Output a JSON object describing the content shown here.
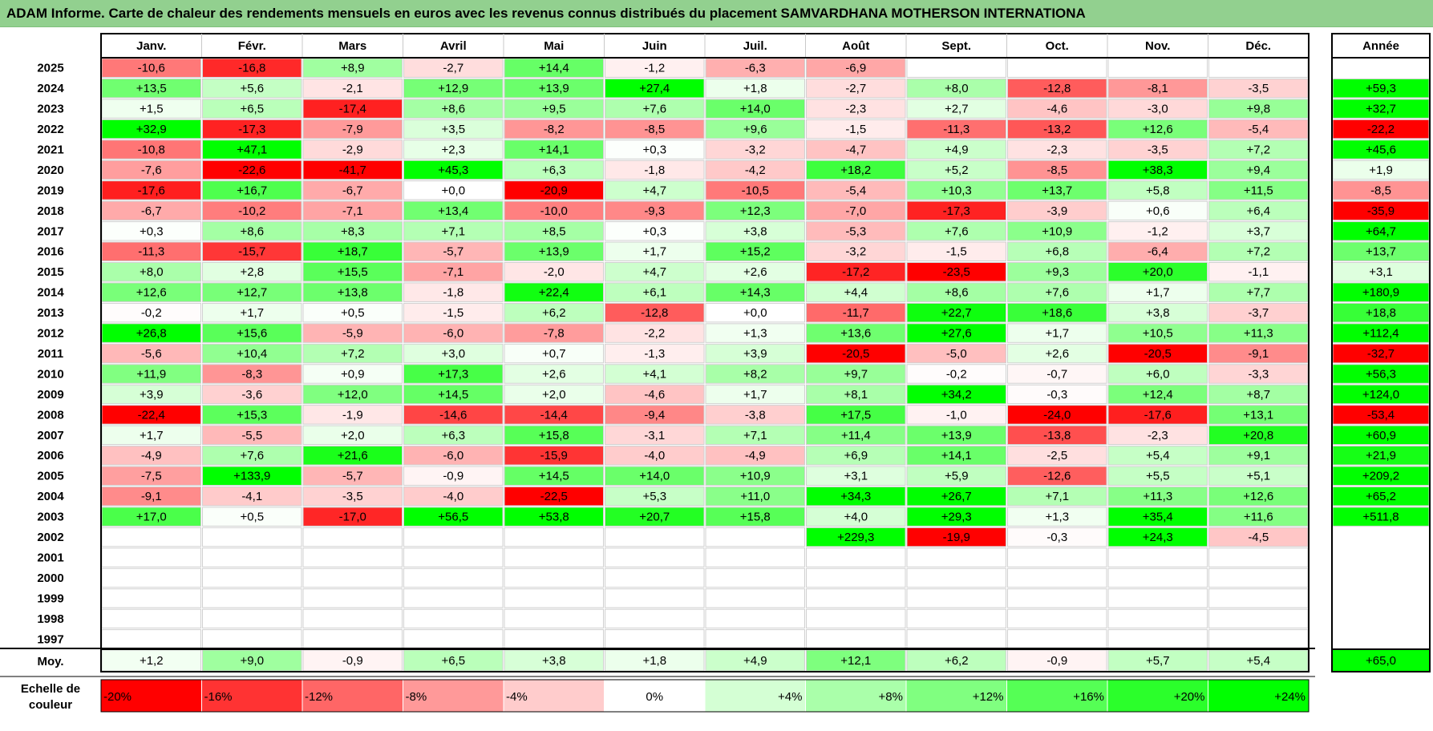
{
  "title": "ADAM Informe. Carte de chaleur des rendements mensuels en euros avec les revenus connus distribués du placement SAMVARDHANA MOTHERSON INTERNATIONA",
  "chart_data": {
    "type": "heatmap",
    "columns": [
      "Janv.",
      "Févr.",
      "Mars",
      "Avril",
      "Mai",
      "Juin",
      "Juil.",
      "Août",
      "Sept.",
      "Oct.",
      "Nov.",
      "Déc."
    ],
    "year_column_label": "Année",
    "rows": [
      {
        "year": "2025",
        "values": [
          -10.6,
          -16.8,
          8.9,
          -2.7,
          14.4,
          -1.2,
          -6.3,
          -6.9,
          null,
          null,
          null,
          null
        ],
        "annual": null
      },
      {
        "year": "2024",
        "values": [
          13.5,
          5.6,
          -2.1,
          12.9,
          13.9,
          27.4,
          1.8,
          -2.7,
          8.0,
          -12.8,
          -8.1,
          -3.5
        ],
        "annual": 59.3
      },
      {
        "year": "2023",
        "values": [
          1.5,
          6.5,
          -17.4,
          8.6,
          9.5,
          7.6,
          14.0,
          -2.3,
          2.7,
          -4.6,
          -3.0,
          9.8
        ],
        "annual": 32.7
      },
      {
        "year": "2022",
        "values": [
          32.9,
          -17.3,
          -7.9,
          3.5,
          -8.2,
          -8.5,
          9.6,
          -1.5,
          -11.3,
          -13.2,
          12.6,
          -5.4
        ],
        "annual": -22.2
      },
      {
        "year": "2021",
        "values": [
          -10.8,
          47.1,
          -2.9,
          2.3,
          14.1,
          0.3,
          -3.2,
          -4.7,
          4.9,
          -2.3,
          -3.5,
          7.2
        ],
        "annual": 45.6
      },
      {
        "year": "2020",
        "values": [
          -7.6,
          -22.6,
          -41.7,
          45.3,
          6.3,
          -1.8,
          -4.2,
          18.2,
          5.2,
          -8.5,
          38.3,
          9.4
        ],
        "annual": 1.9
      },
      {
        "year": "2019",
        "values": [
          -17.6,
          16.7,
          -6.7,
          0.0,
          -20.9,
          4.7,
          -10.5,
          -5.4,
          10.3,
          13.7,
          5.8,
          11.5
        ],
        "annual": -8.5
      },
      {
        "year": "2018",
        "values": [
          -6.7,
          -10.2,
          -7.1,
          13.4,
          -10.0,
          -9.3,
          12.3,
          -7.0,
          -17.3,
          -3.9,
          0.6,
          6.4
        ],
        "annual": -35.9
      },
      {
        "year": "2017",
        "values": [
          0.3,
          8.6,
          8.3,
          7.1,
          8.5,
          0.3,
          3.8,
          -5.3,
          7.6,
          10.9,
          -1.2,
          3.7
        ],
        "annual": 64.7
      },
      {
        "year": "2016",
        "values": [
          -11.3,
          -15.7,
          18.7,
          -5.7,
          13.9,
          1.7,
          15.2,
          -3.2,
          -1.5,
          6.8,
          -6.4,
          7.2
        ],
        "annual": 13.7
      },
      {
        "year": "2015",
        "values": [
          8.0,
          2.8,
          15.5,
          -7.1,
          -2.0,
          4.7,
          2.6,
          -17.2,
          -23.5,
          9.3,
          20.0,
          -1.1
        ],
        "annual": 3.1
      },
      {
        "year": "2014",
        "values": [
          12.6,
          12.7,
          13.8,
          -1.8,
          22.4,
          6.1,
          14.3,
          4.4,
          8.6,
          7.6,
          1.7,
          7.7
        ],
        "annual": 180.9
      },
      {
        "year": "2013",
        "values": [
          -0.2,
          1.7,
          0.5,
          -1.5,
          6.2,
          -12.8,
          0.0,
          -11.7,
          22.7,
          18.6,
          3.8,
          -3.7
        ],
        "annual": 18.8
      },
      {
        "year": "2012",
        "values": [
          26.8,
          15.6,
          -5.9,
          -6.0,
          -7.8,
          -2.2,
          1.3,
          13.6,
          27.6,
          1.7,
          10.5,
          11.3
        ],
        "annual": 112.4
      },
      {
        "year": "2011",
        "values": [
          -5.6,
          10.4,
          7.2,
          3.0,
          0.7,
          -1.3,
          3.9,
          -20.5,
          -5.0,
          2.6,
          -20.5,
          -9.1
        ],
        "annual": -32.7
      },
      {
        "year": "2010",
        "values": [
          11.9,
          -8.3,
          0.9,
          17.3,
          2.6,
          4.1,
          8.2,
          9.7,
          -0.2,
          -0.7,
          6.0,
          -3.3
        ],
        "annual": 56.3
      },
      {
        "year": "2009",
        "values": [
          3.9,
          -3.6,
          12.0,
          14.5,
          2.0,
          -4.6,
          1.7,
          8.1,
          34.2,
          -0.3,
          12.4,
          8.7
        ],
        "annual": 124.0
      },
      {
        "year": "2008",
        "values": [
          -22.4,
          15.3,
          -1.9,
          -14.6,
          -14.4,
          -9.4,
          -3.8,
          17.5,
          -1.0,
          -24.0,
          -17.6,
          13.1
        ],
        "annual": -53.4
      },
      {
        "year": "2007",
        "values": [
          1.7,
          -5.5,
          2.0,
          6.3,
          15.8,
          -3.1,
          7.1,
          11.4,
          13.9,
          -13.8,
          -2.3,
          20.8
        ],
        "annual": 60.9
      },
      {
        "year": "2006",
        "values": [
          -4.9,
          7.6,
          21.6,
          -6.0,
          -15.9,
          -4.0,
          -4.9,
          6.9,
          14.1,
          -2.5,
          5.4,
          9.1
        ],
        "annual": 21.9
      },
      {
        "year": "2005",
        "values": [
          -7.5,
          133.9,
          -5.7,
          -0.9,
          14.5,
          14.0,
          10.9,
          3.1,
          5.9,
          -12.6,
          5.5,
          5.1
        ],
        "annual": 209.2
      },
      {
        "year": "2004",
        "values": [
          -9.1,
          -4.1,
          -3.5,
          -4.0,
          -22.5,
          5.3,
          11.0,
          34.3,
          26.7,
          7.1,
          11.3,
          12.6
        ],
        "annual": 65.2
      },
      {
        "year": "2003",
        "values": [
          17.0,
          0.5,
          -17.0,
          56.5,
          53.8,
          20.7,
          15.8,
          4.0,
          29.3,
          1.3,
          35.4,
          11.6
        ],
        "annual": 511.8
      },
      {
        "year": "2002",
        "values": [
          null,
          null,
          null,
          null,
          null,
          null,
          null,
          229.3,
          -19.9,
          -0.3,
          24.3,
          -4.5
        ],
        "annual": null
      },
      {
        "year": "2001",
        "values": [
          null,
          null,
          null,
          null,
          null,
          null,
          null,
          null,
          null,
          null,
          null,
          null
        ],
        "annual": null
      },
      {
        "year": "2000",
        "values": [
          null,
          null,
          null,
          null,
          null,
          null,
          null,
          null,
          null,
          null,
          null,
          null
        ],
        "annual": null
      },
      {
        "year": "1999",
        "values": [
          null,
          null,
          null,
          null,
          null,
          null,
          null,
          null,
          null,
          null,
          null,
          null
        ],
        "annual": null
      },
      {
        "year": "1998",
        "values": [
          null,
          null,
          null,
          null,
          null,
          null,
          null,
          null,
          null,
          null,
          null,
          null
        ],
        "annual": null
      },
      {
        "year": "1997",
        "values": [
          null,
          null,
          null,
          null,
          null,
          null,
          null,
          null,
          null,
          null,
          null,
          null
        ],
        "annual": null
      }
    ],
    "average": {
      "label": "Moy.",
      "values": [
        1.2,
        9.0,
        -0.9,
        6.5,
        3.8,
        1.8,
        4.9,
        12.1,
        6.2,
        -0.9,
        5.7,
        5.4
      ],
      "annual": 65.0
    },
    "scale": {
      "label_line1": "Echelle de",
      "label_line2": "couleur",
      "steps": [
        {
          "label": "-20%",
          "value": -20,
          "color": "#ff0000"
        },
        {
          "label": "-16%",
          "value": -16,
          "color": "#ff3333"
        },
        {
          "label": "-12%",
          "value": -12,
          "color": "#ff6666"
        },
        {
          "label": "-8%",
          "value": -8,
          "color": "#ff9999"
        },
        {
          "label": "-4%",
          "value": -4,
          "color": "#ffcccc"
        },
        {
          "label": "0%",
          "value": 0,
          "color": "#ffffff"
        },
        {
          "label": "+4%",
          "value": 4,
          "color": "#d4ffd4"
        },
        {
          "label": "+8%",
          "value": 8,
          "color": "#aaffaa"
        },
        {
          "label": "+12%",
          "value": 12,
          "color": "#80ff80"
        },
        {
          "label": "+16%",
          "value": 16,
          "color": "#55ff55"
        },
        {
          "label": "+20%",
          "value": 20,
          "color": "#2bff2b"
        },
        {
          "label": "+24%",
          "value": 24,
          "color": "#00ff00"
        }
      ]
    },
    "colors": {
      "title_bg": "#92d08f",
      "negative_max": "#ff0000",
      "positive_max": "#00ff00",
      "neutral": "#ffffff"
    }
  }
}
